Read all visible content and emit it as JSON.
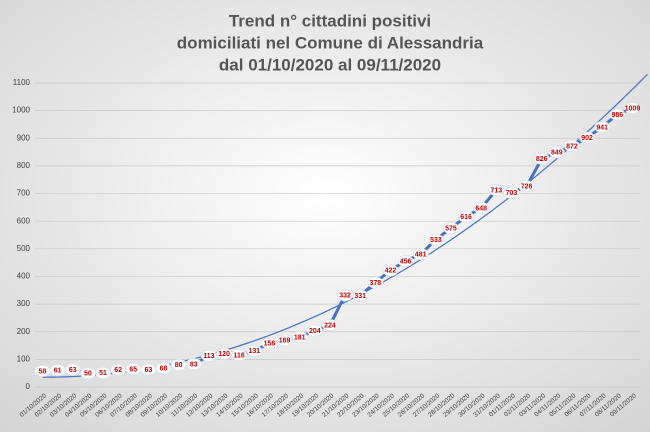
{
  "chart_data": {
    "type": "line",
    "title": [
      "Trend n° cittadini positivi",
      "domiciliati nel Comune di Alessandria",
      "dal 01/10/2020 al 09/11/2020"
    ],
    "categories": [
      "01/10/2020",
      "02/10/2020",
      "03/10/2020",
      "04/10/2020",
      "05/10/2020",
      "06/10/2020",
      "07/10/2020",
      "08/10/2020",
      "09/10/2020",
      "10/10/2020",
      "11/10/2020",
      "12/10/2020",
      "13/10/2020",
      "14/10/2020",
      "15/10/2020",
      "16/10/2020",
      "17/10/2020",
      "18/10/2020",
      "19/10/2020",
      "20/10/2020",
      "21/10/2020",
      "22/10/2020",
      "23/10/2020",
      "24/10/2020",
      "25/10/2020",
      "26/10/2020",
      "27/10/2020",
      "28/10/2020",
      "29/10/2020",
      "30/10/2020",
      "31/10/2020",
      "01/11/2020",
      "02/11/2020",
      "03/11/2020",
      "04/11/2020",
      "05/11/2020",
      "06/11/2020",
      "07/11/2020",
      "08/11/2020",
      "09/11/2020"
    ],
    "values": [
      58,
      61,
      63,
      50,
      51,
      62,
      65,
      63,
      68,
      80,
      83,
      113,
      120,
      116,
      131,
      158,
      169,
      181,
      204,
      224,
      332,
      331,
      378,
      422,
      456,
      481,
      533,
      575,
      616,
      648,
      713,
      703,
      726,
      826,
      849,
      872,
      902,
      941,
      986,
      1009
    ],
    "color": "#4472c4",
    "label_color": "#c00000",
    "trendline": "polynomial",
    "ylim": [
      0,
      1100
    ],
    "yticks": [
      0,
      100,
      200,
      300,
      400,
      500,
      600,
      700,
      800,
      900,
      1000,
      1100
    ],
    "grid": true
  }
}
